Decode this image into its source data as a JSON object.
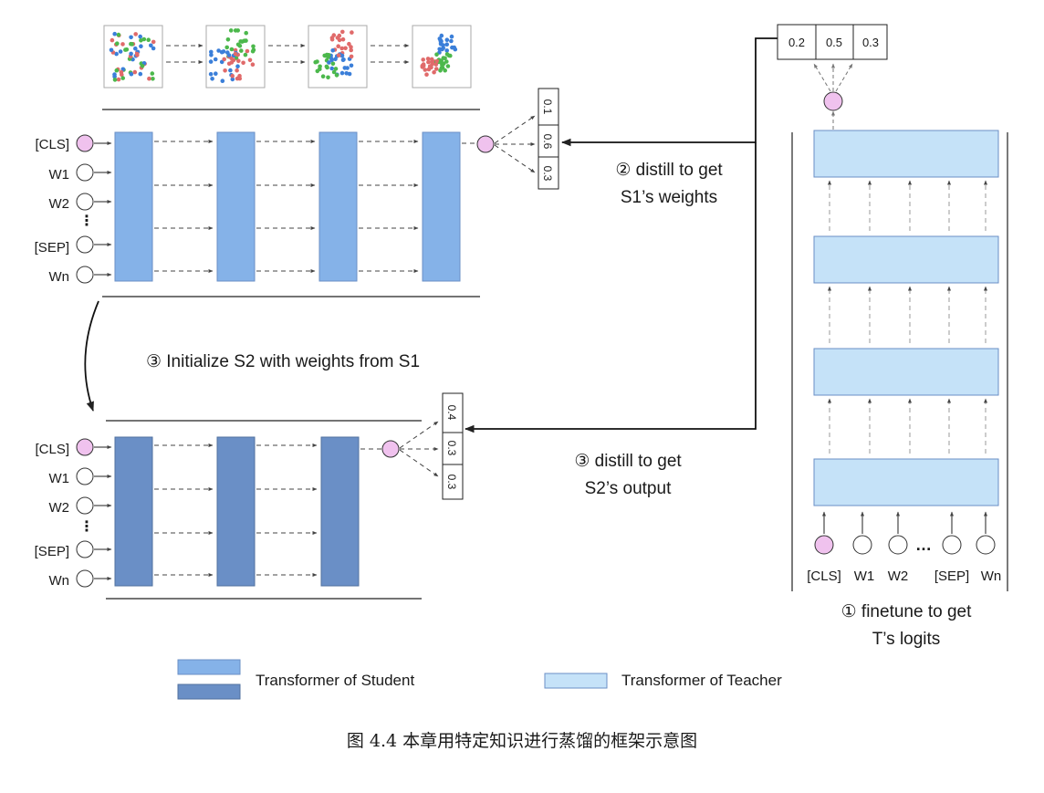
{
  "scatter_thumbnails": {
    "count": 4,
    "colors": [
      "#3b7fd9",
      "#e06a6a",
      "#4cb84c"
    ]
  },
  "student1": {
    "inputs": [
      "[CLS]",
      "W1",
      "W2",
      "[SEP]",
      "Wn"
    ],
    "probs": [
      "0.1",
      "0.6",
      "0.3"
    ],
    "block_color": "#85b2e8"
  },
  "student2": {
    "inputs": [
      "[CLS]",
      "W1",
      "W2",
      "[SEP]",
      "Wn"
    ],
    "probs": [
      "0.4",
      "0.3",
      "0.3"
    ],
    "block_color": "#6a8fc6"
  },
  "teacher": {
    "logits": [
      "0.2",
      "0.5",
      "0.3"
    ],
    "inputs": [
      "[CLS]",
      "W1",
      "W2",
      "[SEP]",
      "Wn"
    ],
    "block_color": "#c5e2f8"
  },
  "steps": {
    "distill_s1_line1": "② distill to get",
    "distill_s1_line2": "S1’s weights",
    "init_s2": "③ Initialize S2  with weights from S1",
    "distill_s2_line1": "③ distill to get",
    "distill_s2_line2": "S2’s output",
    "finetune_line1": "① finetune to get",
    "finetune_line2": "T’s logits"
  },
  "legend": {
    "student": "Transformer of Student",
    "teacher": "Transformer of Teacher"
  },
  "caption": "图 4.4    本章用特定知识进行蒸馏的框架示意图",
  "colors": {
    "cls_node": "#f0c2ee",
    "accent_text": "#1a1a1a"
  }
}
